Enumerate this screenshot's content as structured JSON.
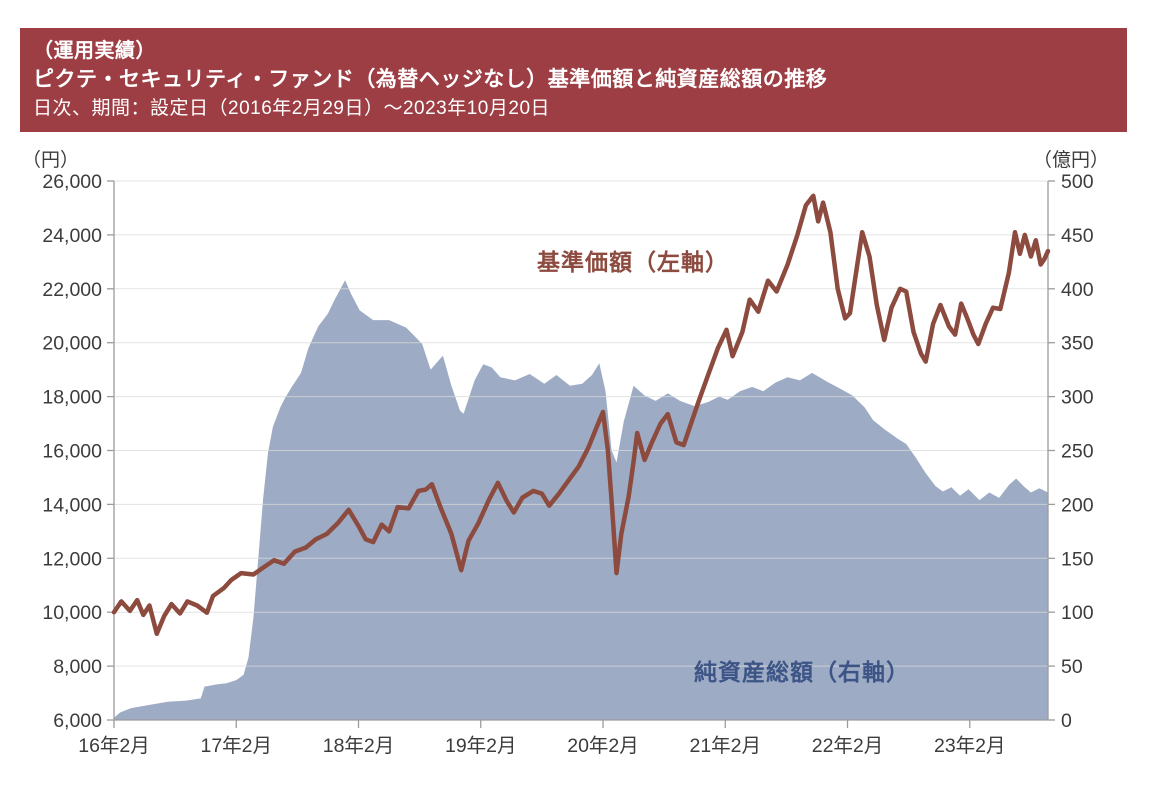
{
  "header": {
    "bg_color": "#9D3E44",
    "line1": "（運用実績）",
    "line2": "ピクテ・セキュリティ・ファンド（為替ヘッジなし）基準価額と純資産総額の推移",
    "line3": "日次、期間：設定日（2016年2月29日）～2023年10月20日"
  },
  "chart": {
    "series_labels": {
      "nav": "基準価額（左軸）",
      "aum": "純資産総額（右軸）"
    },
    "colors": {
      "nav_line": "#8C4B3E",
      "nav_label": "#8C4B3E",
      "aum_fill": "#9DACC4",
      "aum_label": "#3D5586",
      "gridline": "#D9D9D9",
      "axis": "#9C9C9C",
      "tick_text": "#3C3C3C"
    }
  },
  "chart_data": {
    "type": "line+area",
    "x_axis": {
      "tick_labels": [
        "16年2月",
        "17年2月",
        "18年2月",
        "19年2月",
        "20年2月",
        "21年2月",
        "22年2月",
        "23年2月"
      ],
      "tick_years": [
        2016.16,
        2017.16,
        2018.16,
        2019.16,
        2020.16,
        2021.16,
        2022.16,
        2023.16
      ],
      "domain": [
        2016.16,
        2023.8
      ]
    },
    "left_axis": {
      "unit": "（円）",
      "domain": [
        6000,
        26000
      ],
      "tick_values": [
        26000,
        24000,
        22000,
        20000,
        18000,
        16000,
        14000,
        12000,
        10000,
        8000,
        6000
      ],
      "tick_labels": [
        "26,000",
        "24,000",
        "22,000",
        "20,000",
        "18,000",
        "16,000",
        "14,000",
        "12,000",
        "10,000",
        "8,000",
        "6,000"
      ]
    },
    "right_axis": {
      "unit": "（億円）",
      "domain": [
        0,
        500
      ],
      "tick_values": [
        500,
        450,
        400,
        350,
        300,
        250,
        200,
        150,
        100,
        50,
        0
      ],
      "tick_labels": [
        "500",
        "450",
        "400",
        "350",
        "300",
        "250",
        "200",
        "150",
        "100",
        "50",
        "0"
      ]
    },
    "series": [
      {
        "name": "基準価額（左軸）",
        "type": "line",
        "axis": "left",
        "color": "#8C4B3E",
        "points": [
          [
            2016.16,
            10000
          ],
          [
            2016.22,
            10400
          ],
          [
            2016.29,
            10050
          ],
          [
            2016.35,
            10450
          ],
          [
            2016.4,
            9900
          ],
          [
            2016.45,
            10250
          ],
          [
            2016.51,
            9200
          ],
          [
            2016.57,
            9850
          ],
          [
            2016.63,
            10300
          ],
          [
            2016.7,
            9950
          ],
          [
            2016.76,
            10400
          ],
          [
            2016.84,
            10250
          ],
          [
            2016.92,
            9980
          ],
          [
            2016.97,
            10600
          ],
          [
            2017.06,
            10900
          ],
          [
            2017.12,
            11200
          ],
          [
            2017.2,
            11450
          ],
          [
            2017.3,
            11400
          ],
          [
            2017.38,
            11650
          ],
          [
            2017.47,
            11930
          ],
          [
            2017.55,
            11800
          ],
          [
            2017.64,
            12250
          ],
          [
            2017.73,
            12400
          ],
          [
            2017.81,
            12700
          ],
          [
            2017.9,
            12900
          ],
          [
            2017.99,
            13300
          ],
          [
            2018.08,
            13800
          ],
          [
            2018.16,
            13200
          ],
          [
            2018.22,
            12700
          ],
          [
            2018.28,
            12600
          ],
          [
            2018.35,
            13250
          ],
          [
            2018.41,
            13000
          ],
          [
            2018.48,
            13900
          ],
          [
            2018.57,
            13850
          ],
          [
            2018.65,
            14500
          ],
          [
            2018.71,
            14550
          ],
          [
            2018.76,
            14750
          ],
          [
            2018.83,
            13900
          ],
          [
            2018.92,
            12900
          ],
          [
            2019.0,
            11560
          ],
          [
            2019.06,
            12650
          ],
          [
            2019.14,
            13300
          ],
          [
            2019.23,
            14200
          ],
          [
            2019.3,
            14800
          ],
          [
            2019.37,
            14150
          ],
          [
            2019.43,
            13700
          ],
          [
            2019.5,
            14250
          ],
          [
            2019.59,
            14500
          ],
          [
            2019.66,
            14400
          ],
          [
            2019.72,
            13950
          ],
          [
            2019.8,
            14400
          ],
          [
            2019.88,
            14900
          ],
          [
            2019.96,
            15400
          ],
          [
            2020.04,
            16100
          ],
          [
            2020.12,
            17000
          ],
          [
            2020.16,
            17430
          ],
          [
            2020.2,
            16000
          ],
          [
            2020.24,
            13500
          ],
          [
            2020.27,
            11450
          ],
          [
            2020.31,
            12900
          ],
          [
            2020.37,
            14300
          ],
          [
            2020.41,
            15600
          ],
          [
            2020.44,
            16650
          ],
          [
            2020.5,
            15650
          ],
          [
            2020.56,
            16300
          ],
          [
            2020.63,
            17000
          ],
          [
            2020.69,
            17350
          ],
          [
            2020.76,
            16300
          ],
          [
            2020.82,
            16200
          ],
          [
            2020.88,
            17000
          ],
          [
            2020.94,
            17800
          ],
          [
            2021.02,
            18800
          ],
          [
            2021.1,
            19800
          ],
          [
            2021.17,
            20480
          ],
          [
            2021.22,
            19500
          ],
          [
            2021.3,
            20400
          ],
          [
            2021.36,
            21600
          ],
          [
            2021.43,
            21150
          ],
          [
            2021.51,
            22300
          ],
          [
            2021.58,
            21900
          ],
          [
            2021.67,
            22900
          ],
          [
            2021.75,
            24000
          ],
          [
            2021.82,
            25100
          ],
          [
            2021.88,
            25450
          ],
          [
            2021.92,
            24500
          ],
          [
            2021.96,
            25200
          ],
          [
            2022.02,
            24100
          ],
          [
            2022.08,
            22000
          ],
          [
            2022.14,
            20900
          ],
          [
            2022.18,
            21100
          ],
          [
            2022.24,
            22900
          ],
          [
            2022.28,
            24100
          ],
          [
            2022.34,
            23200
          ],
          [
            2022.4,
            21400
          ],
          [
            2022.46,
            20100
          ],
          [
            2022.52,
            21300
          ],
          [
            2022.59,
            22000
          ],
          [
            2022.64,
            21900
          ],
          [
            2022.7,
            20400
          ],
          [
            2022.76,
            19600
          ],
          [
            2022.8,
            19300
          ],
          [
            2022.86,
            20700
          ],
          [
            2022.92,
            21400
          ],
          [
            2022.99,
            20600
          ],
          [
            2023.04,
            20300
          ],
          [
            2023.09,
            21450
          ],
          [
            2023.14,
            20900
          ],
          [
            2023.19,
            20300
          ],
          [
            2023.23,
            19950
          ],
          [
            2023.29,
            20700
          ],
          [
            2023.35,
            21300
          ],
          [
            2023.41,
            21250
          ],
          [
            2023.48,
            22600
          ],
          [
            2023.53,
            24100
          ],
          [
            2023.57,
            23300
          ],
          [
            2023.61,
            24000
          ],
          [
            2023.66,
            23200
          ],
          [
            2023.7,
            23800
          ],
          [
            2023.74,
            22900
          ],
          [
            2023.77,
            23100
          ],
          [
            2023.8,
            23400
          ]
        ]
      },
      {
        "name": "純資産総額（右軸）",
        "type": "area",
        "axis": "right",
        "color": "#9DACC4",
        "points": [
          [
            2016.16,
            2
          ],
          [
            2016.21,
            7
          ],
          [
            2016.3,
            11
          ],
          [
            2016.45,
            14
          ],
          [
            2016.6,
            17
          ],
          [
            2016.75,
            18
          ],
          [
            2016.87,
            20
          ],
          [
            2016.9,
            31
          ],
          [
            2017.0,
            33
          ],
          [
            2017.08,
            34
          ],
          [
            2017.16,
            37
          ],
          [
            2017.22,
            42
          ],
          [
            2017.26,
            58
          ],
          [
            2017.3,
            95
          ],
          [
            2017.34,
            150
          ],
          [
            2017.38,
            205
          ],
          [
            2017.42,
            248
          ],
          [
            2017.46,
            272
          ],
          [
            2017.52,
            290
          ],
          [
            2017.56,
            299
          ],
          [
            2017.62,
            310
          ],
          [
            2017.69,
            322
          ],
          [
            2017.75,
            345
          ],
          [
            2017.79,
            355
          ],
          [
            2017.83,
            365
          ],
          [
            2017.91,
            377
          ],
          [
            2017.96,
            389
          ],
          [
            2018.05,
            408
          ],
          [
            2018.1,
            395
          ],
          [
            2018.17,
            380
          ],
          [
            2018.28,
            371
          ],
          [
            2018.41,
            371
          ],
          [
            2018.55,
            364
          ],
          [
            2018.68,
            349
          ],
          [
            2018.75,
            325
          ],
          [
            2018.85,
            338
          ],
          [
            2018.92,
            310
          ],
          [
            2018.99,
            287
          ],
          [
            2019.02,
            284
          ],
          [
            2019.11,
            315
          ],
          [
            2019.18,
            330
          ],
          [
            2019.25,
            327
          ],
          [
            2019.32,
            318
          ],
          [
            2019.44,
            315
          ],
          [
            2019.56,
            321
          ],
          [
            2019.68,
            312
          ],
          [
            2019.78,
            320
          ],
          [
            2019.89,
            310
          ],
          [
            2019.99,
            312
          ],
          [
            2020.07,
            320
          ],
          [
            2020.13,
            331
          ],
          [
            2020.18,
            305
          ],
          [
            2020.23,
            250
          ],
          [
            2020.27,
            239
          ],
          [
            2020.33,
            277
          ],
          [
            2020.41,
            310
          ],
          [
            2020.5,
            301
          ],
          [
            2020.59,
            296
          ],
          [
            2020.69,
            303
          ],
          [
            2020.79,
            296
          ],
          [
            2020.91,
            291
          ],
          [
            2021.02,
            295
          ],
          [
            2021.11,
            300
          ],
          [
            2021.18,
            297
          ],
          [
            2021.28,
            305
          ],
          [
            2021.38,
            309
          ],
          [
            2021.47,
            305
          ],
          [
            2021.57,
            313
          ],
          [
            2021.67,
            318
          ],
          [
            2021.77,
            315
          ],
          [
            2021.87,
            322
          ],
          [
            2021.99,
            314
          ],
          [
            2022.09,
            308
          ],
          [
            2022.2,
            301
          ],
          [
            2022.3,
            290
          ],
          [
            2022.37,
            278
          ],
          [
            2022.47,
            269
          ],
          [
            2022.57,
            261
          ],
          [
            2022.64,
            256
          ],
          [
            2022.72,
            243
          ],
          [
            2022.8,
            229
          ],
          [
            2022.88,
            217
          ],
          [
            2022.94,
            212
          ],
          [
            2023.01,
            216
          ],
          [
            2023.08,
            208
          ],
          [
            2023.15,
            214
          ],
          [
            2023.24,
            204
          ],
          [
            2023.32,
            211
          ],
          [
            2023.4,
            206
          ],
          [
            2023.48,
            218
          ],
          [
            2023.54,
            224
          ],
          [
            2023.6,
            217
          ],
          [
            2023.66,
            211
          ],
          [
            2023.73,
            215
          ],
          [
            2023.8,
            211
          ]
        ]
      }
    ]
  }
}
